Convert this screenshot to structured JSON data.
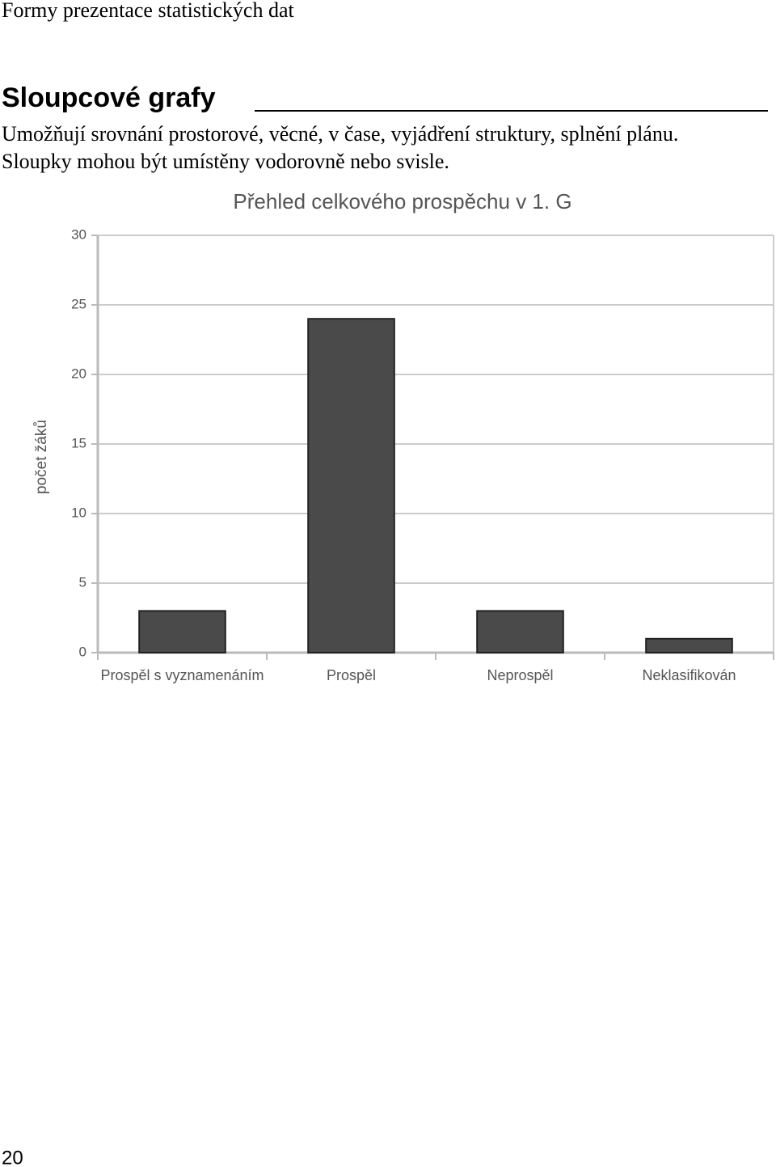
{
  "header": "Formy prezentace statistických dat",
  "heading": "Sloupcové grafy",
  "paragraph": [
    "Umožňují srovnání prostorové, věcné, v čase, vyjádření struktury, splnění plánu.",
    "Sloupky mohou být umístěny vodorovně nebo svisle."
  ],
  "chart_data": {
    "type": "bar",
    "title": "Přehled celkového prospěchu v 1. G",
    "y_label": "počet žáků",
    "categories": [
      "Prospěl s vyznamenáním",
      "Prospěl",
      "Neprospěl",
      "Neklasifikován"
    ],
    "values": [
      3,
      24,
      3,
      1
    ],
    "color": "#4a4a4a",
    "ylim": [
      0,
      30
    ],
    "yticks": [
      0,
      5,
      10,
      15,
      20,
      25,
      30
    ],
    "grid": true
  },
  "page_number": "20"
}
